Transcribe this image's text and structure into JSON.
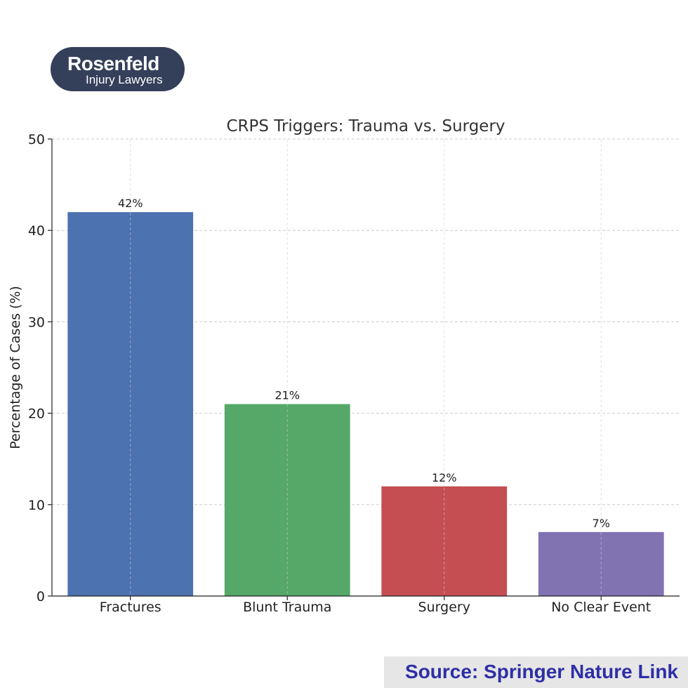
{
  "logo": {
    "brand": "Rosenfeld",
    "tagline": "Injury Lawyers"
  },
  "source": {
    "text": "Source: Springer Nature Link",
    "color": "#2e2ea8"
  },
  "chart_data": {
    "type": "bar",
    "title": "CRPS Triggers: Trauma vs. Surgery",
    "xlabel": "",
    "ylabel": "Percentage of Cases (%)",
    "categories": [
      "Fractures",
      "Blunt Trauma",
      "Surgery",
      "No Clear Event"
    ],
    "values": [
      42,
      21,
      12,
      7
    ],
    "data_labels": [
      "42%",
      "21%",
      "12%",
      "7%"
    ],
    "colors": [
      "#4c72b0",
      "#55a868",
      "#c44e52",
      "#8172b2"
    ],
    "ylim": [
      0,
      50
    ],
    "yticks": [
      0,
      10,
      20,
      30,
      40,
      50
    ],
    "grid": true
  }
}
